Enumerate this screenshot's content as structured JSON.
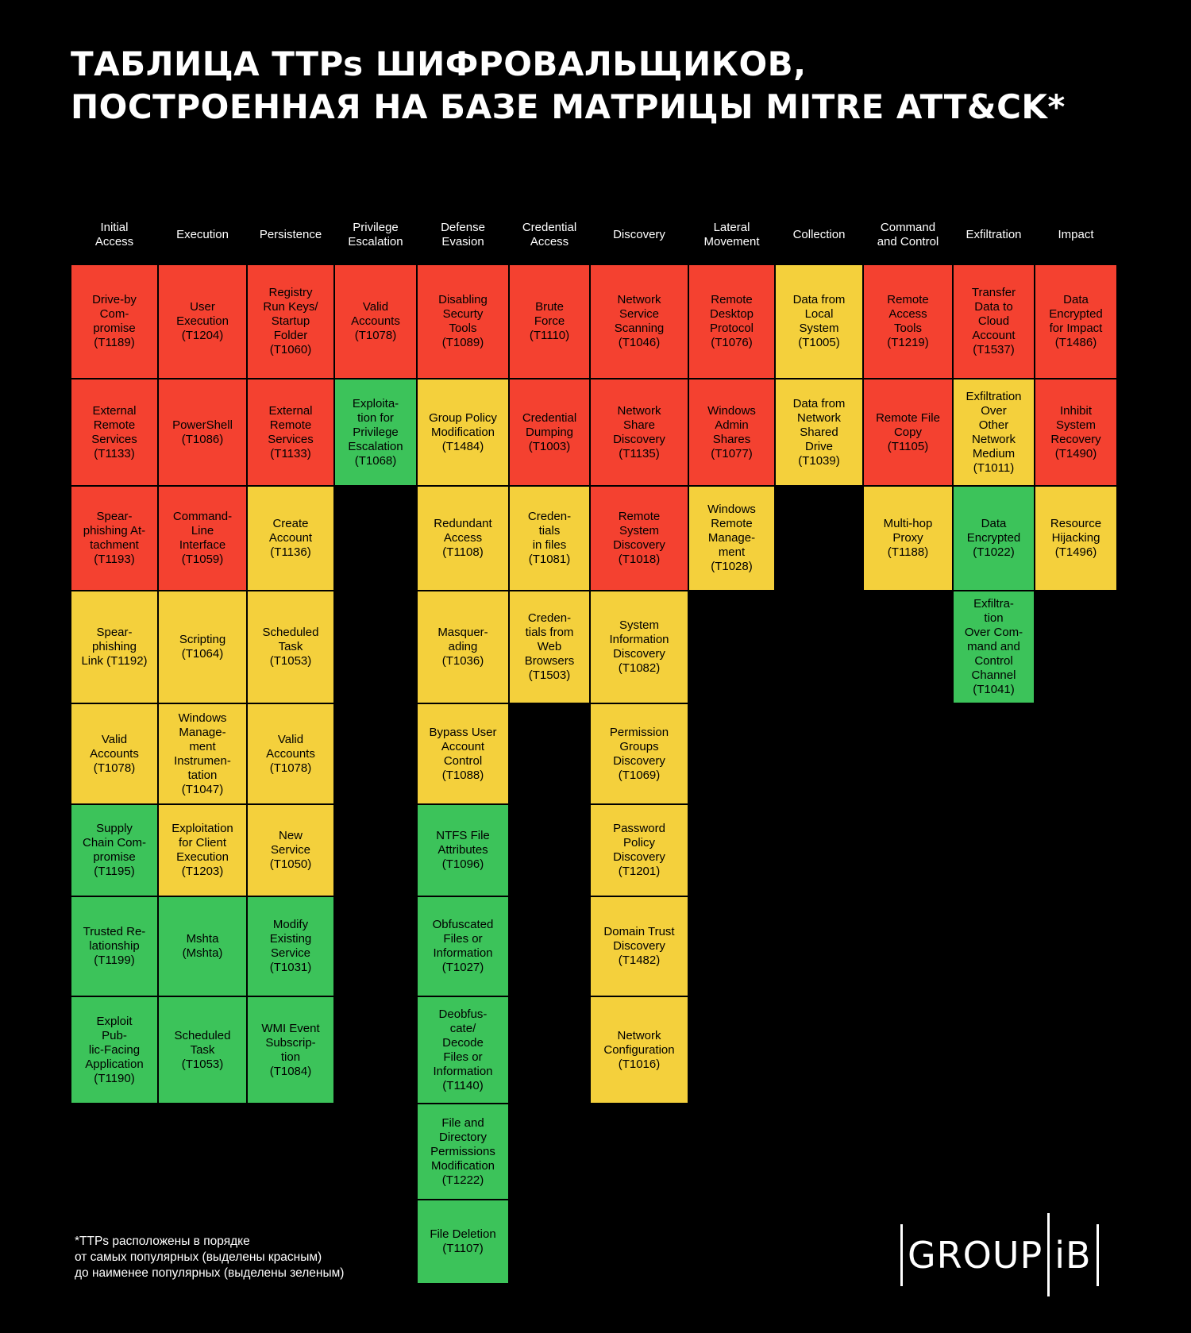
{
  "title": {
    "line1": "ТАБЛИЦА TTPs ШИФРОВАЛЬЩИКОВ,",
    "line2": "ПОСТРОЕННАЯ НА БАЗЕ МАТРИЦЫ MITRE ATT&CK*"
  },
  "colors": {
    "red": "#f44130",
    "yellow": "#f4d03c",
    "green": "#3cc35a",
    "background": "#000000"
  },
  "columns": [
    {
      "header": "Initial\nAccess",
      "cells": [
        {
          "label": "Drive-by\nCom-\npromise\n(T1189)",
          "level": "red"
        },
        {
          "label": "External\nRemote\nServices\n(T1133)",
          "level": "red"
        },
        {
          "label": "Spear-\nphishing At-\ntachment\n(T1193)",
          "level": "red"
        },
        {
          "label": "Spear-\nphishing\nLink (T1192)",
          "level": "yellow"
        },
        {
          "label": "Valid\nAccounts\n(T1078)",
          "level": "yellow"
        },
        {
          "label": "Supply\nChain Com-\npromise\n(T1195)",
          "level": "green"
        },
        {
          "label": "Trusted Re-\nlationship\n(T1199)",
          "level": "green"
        },
        {
          "label": "Exploit\nPub-\nlic-Facing\nApplication\n(T1190)",
          "level": "green"
        }
      ]
    },
    {
      "header": "Execution",
      "cells": [
        {
          "label": "User\nExecution\n(T1204)",
          "level": "red"
        },
        {
          "label": "PowerShell\n(T1086)",
          "level": "red"
        },
        {
          "label": "Command-\nLine\nInterface\n(T1059)",
          "level": "red"
        },
        {
          "label": "Scripting\n(T1064)",
          "level": "yellow"
        },
        {
          "label": "Windows\nManage-\nment\nInstrumen-\ntation\n(T1047)",
          "level": "yellow"
        },
        {
          "label": "Exploitation\nfor Client\nExecution\n(T1203)",
          "level": "yellow"
        },
        {
          "label": "Mshta\n(Mshta)",
          "level": "green"
        },
        {
          "label": "Scheduled\nTask\n(T1053)",
          "level": "green"
        }
      ]
    },
    {
      "header": "Persistence",
      "cells": [
        {
          "label": "Registry\nRun Keys/\nStartup\nFolder\n(T1060)",
          "level": "red"
        },
        {
          "label": "External\nRemote\nServices\n(T1133)",
          "level": "red"
        },
        {
          "label": "Create\nAccount\n(T1136)",
          "level": "yellow"
        },
        {
          "label": "Scheduled\nTask\n(T1053)",
          "level": "yellow"
        },
        {
          "label": "Valid\nAccounts\n(T1078)",
          "level": "yellow"
        },
        {
          "label": "New\nService\n(T1050)",
          "level": "yellow"
        },
        {
          "label": "Modify\nExisting\nService\n(T1031)",
          "level": "green"
        },
        {
          "label": "WMI Event\nSubscrip-\ntion\n(T1084)",
          "level": "green"
        }
      ]
    },
    {
      "header": "Privilege\nEscalation",
      "cells": [
        {
          "label": "Valid\nAccounts\n(T1078)",
          "level": "red"
        },
        {
          "label": "Exploita-\ntion for\nPrivilege\nEscalation\n(T1068)",
          "level": "green"
        }
      ]
    },
    {
      "header": "Defense\nEvasion",
      "cells": [
        {
          "label": "Disabling\nSecurty\nTools\n(T1089)",
          "level": "red"
        },
        {
          "label": "Group Policy\nModification\n(T1484)",
          "level": "yellow"
        },
        {
          "label": "Redundant\nAccess\n(T1108)",
          "level": "yellow"
        },
        {
          "label": "Masquer-\nading\n(T1036)",
          "level": "yellow"
        },
        {
          "label": "Bypass User\nAccount\nControl\n(T1088)",
          "level": "yellow"
        },
        {
          "label": "NTFS File\nAttributes\n(T1096)",
          "level": "green"
        },
        {
          "label": "Obfuscated\nFiles or\nInformation\n(T1027)",
          "level": "green"
        },
        {
          "label": "Deobfus-\ncate/\nDecode\nFiles or\nInformation\n(T1140)",
          "level": "green"
        },
        {
          "label": "File and\nDirectory\nPermissions\nModification\n(T1222)",
          "level": "green"
        },
        {
          "label": "File Deletion\n(T1107)",
          "level": "green"
        }
      ]
    },
    {
      "header": "Credential\nAccess",
      "cells": [
        {
          "label": "Brute\nForce\n(T1110)",
          "level": "red"
        },
        {
          "label": "Credential\nDumping\n(T1003)",
          "level": "red"
        },
        {
          "label": "Creden-\ntials\nin files\n(T1081)",
          "level": "yellow"
        },
        {
          "label": "Creden-\ntials from\nWeb\nBrowsers\n(T1503)",
          "level": "yellow"
        }
      ]
    },
    {
      "header": "Discovery",
      "cells": [
        {
          "label": "Network\nService\nScanning\n(T1046)",
          "level": "red"
        },
        {
          "label": "Network\nShare\nDiscovery\n(T1135)",
          "level": "red"
        },
        {
          "label": "Remote\nSystem\nDiscovery\n(T1018)",
          "level": "red"
        },
        {
          "label": "System\nInformation\nDiscovery\n(T1082)",
          "level": "yellow"
        },
        {
          "label": "Permission\nGroups\nDiscovery\n(T1069)",
          "level": "yellow"
        },
        {
          "label": "Password\nPolicy\nDiscovery\n(T1201)",
          "level": "yellow"
        },
        {
          "label": "Domain Trust\nDiscovery\n(T1482)",
          "level": "yellow"
        },
        {
          "label": "Network\nConfiguration\n(T1016)",
          "level": "yellow"
        }
      ]
    },
    {
      "header": "Lateral\nMovement",
      "cells": [
        {
          "label": "Remote\nDesktop\nProtocol\n(T1076)",
          "level": "red"
        },
        {
          "label": "Windows\nAdmin\nShares\n(T1077)",
          "level": "red"
        },
        {
          "label": "Windows\nRemote\nManage-\nment\n(T1028)",
          "level": "yellow"
        }
      ]
    },
    {
      "header": "Collection",
      "cells": [
        {
          "label": "Data from\nLocal\nSystem\n(T1005)",
          "level": "yellow"
        },
        {
          "label": "Data from\nNetwork\nShared\nDrive\n(T1039)",
          "level": "yellow"
        }
      ]
    },
    {
      "header": "Command\nand Control",
      "cells": [
        {
          "label": "Remote\nAccess\nTools\n(T1219)",
          "level": "red"
        },
        {
          "label": "Remote File\nCopy\n(T1105)",
          "level": "red"
        },
        {
          "label": "Multi-hop\nProxy\n(T1188)",
          "level": "yellow"
        }
      ]
    },
    {
      "header": "Exfiltration",
      "cells": [
        {
          "label": "Transfer\nData to\nCloud\nAccount\n(T1537)",
          "level": "red"
        },
        {
          "label": "Exfiltration\nOver\nOther\nNetwork\nMedium\n(T1011)",
          "level": "yellow"
        },
        {
          "label": "Data\nEncrypted\n(T1022)",
          "level": "green"
        },
        {
          "label": "Exfiltra-\ntion\nOver Com-\nmand and\nControl\nChannel\n(T1041)",
          "level": "green"
        }
      ]
    },
    {
      "header": "Impact",
      "cells": [
        {
          "label": "Data\nEncrypted\nfor Impact\n(T1486)",
          "level": "red"
        },
        {
          "label": "Inhibit\nSystem\nRecovery\n(T1490)",
          "level": "red"
        },
        {
          "label": "Resource\nHijacking\n(T1496)",
          "level": "yellow"
        }
      ]
    }
  ],
  "footnote": "*TTPs расположены в порядке\nот самых популярных (выделены красным)\nдо наименее популярных (выделены зеленым)",
  "logo": {
    "left": "GROUP",
    "right": "iB"
  }
}
